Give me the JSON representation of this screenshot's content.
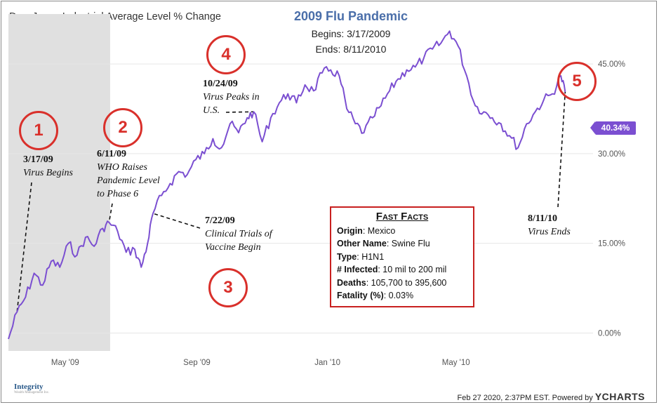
{
  "header": {
    "chart_title": "Dow Jones Industrial Average Level % Change",
    "event_title": "2009 Flu Pandemic",
    "begins": "Begins: 3/17/2009",
    "ends": "Ends: 8/11/2010"
  },
  "annotations": [
    {
      "num": "1",
      "date": "3/17/09",
      "desc_lines": [
        "Virus Begins"
      ]
    },
    {
      "num": "2",
      "date": "6/11/09",
      "desc_lines": [
        "WHO Raises",
        "Pandemic Level",
        "to Phase 6"
      ]
    },
    {
      "num": "3",
      "date": "7/22/09",
      "desc_lines": [
        "Clinical Trials of",
        "Vaccine Begin"
      ]
    },
    {
      "num": "4",
      "date": "10/24/09",
      "desc_lines": [
        "Virus Peaks in",
        "U.S."
      ]
    },
    {
      "num": "5",
      "date": "8/11/10",
      "desc_lines": [
        "Virus Ends"
      ]
    }
  ],
  "fast_facts": {
    "title": "Fast Facts",
    "rows": [
      {
        "label": "Origin",
        "value": ": Mexico"
      },
      {
        "label": "Other Name",
        "value": ": Swine Flu"
      },
      {
        "label": "Type",
        "value": ": H1N1"
      },
      {
        "label": "# Infected",
        "value": ": 10 mil to 200 mil"
      },
      {
        "label": "Deaths",
        "value": ": 105,700 to 395,600"
      },
      {
        "label": "Fatality (%)",
        "value": ": 0.03%"
      }
    ]
  },
  "value_tag": "40.34%",
  "footer": {
    "timestamp": "Feb 27 2020, 2:37PM EST. Powered by",
    "brand": "YCHARTS"
  },
  "logo": {
    "name": "Integrity",
    "tagline": "Wealth Management Inc."
  },
  "colors": {
    "line": "#7b4fd1",
    "marker": "#d9302b",
    "shade": "#e0e0e0",
    "title": "#4a6ea9"
  },
  "chart_data": {
    "type": "line",
    "title": "Dow Jones Industrial Average Level % Change",
    "x_tick_labels": [
      "May '09",
      "Sep '09",
      "Jan '10",
      "May '10"
    ],
    "y_tick_labels": [
      "0.00%",
      "15.00%",
      "30.00%",
      "45.00%"
    ],
    "ylim": [
      -3,
      51
    ],
    "xlim": [
      "2009-03-09",
      "2010-09-06"
    ],
    "grid": "horizontal",
    "shaded_range": [
      "2009-03-09",
      "2009-06-12"
    ],
    "series": [
      {
        "x": [
          "2009-03-09",
          "2009-03-17",
          "2009-03-25",
          "2009-04-02",
          "2009-04-10",
          "2009-04-18",
          "2009-04-26",
          "2009-05-04",
          "2009-05-12",
          "2009-05-20",
          "2009-05-28",
          "2009-06-05",
          "2009-06-11",
          "2009-06-19",
          "2009-06-27",
          "2009-07-05",
          "2009-07-11",
          "2009-07-17",
          "2009-07-22",
          "2009-07-30",
          "2009-08-07",
          "2009-08-15",
          "2009-08-23",
          "2009-08-31",
          "2009-09-08",
          "2009-09-16",
          "2009-09-24",
          "2009-10-02",
          "2009-10-10",
          "2009-10-18",
          "2009-10-24",
          "2009-11-01",
          "2009-11-09",
          "2009-11-17",
          "2009-11-25",
          "2009-12-03",
          "2009-12-11",
          "2009-12-19",
          "2009-12-27",
          "2010-01-04",
          "2010-01-12",
          "2010-01-19",
          "2010-01-27",
          "2010-02-04",
          "2010-02-12",
          "2010-02-20",
          "2010-02-28",
          "2010-03-08",
          "2010-03-16",
          "2010-03-24",
          "2010-04-01",
          "2010-04-09",
          "2010-04-17",
          "2010-04-25",
          "2010-05-03",
          "2010-05-11",
          "2010-05-19",
          "2010-05-27",
          "2010-06-04",
          "2010-06-12",
          "2010-06-20",
          "2010-06-28",
          "2010-07-06",
          "2010-07-14",
          "2010-07-22",
          "2010-07-30",
          "2010-08-07",
          "2010-08-11"
        ],
        "y": [
          -1,
          3.5,
          6,
          10,
          8,
          12,
          11,
          15,
          13,
          16,
          14.5,
          17.5,
          18.5,
          17,
          13.5,
          14,
          11,
          15,
          20,
          23,
          25,
          27,
          26.5,
          29,
          30,
          32.5,
          31,
          35,
          33.5,
          36,
          37,
          32,
          36,
          38.5,
          40,
          38.5,
          41.5,
          40.5,
          43.5,
          44,
          43,
          37.5,
          35,
          33.5,
          36,
          38,
          40.5,
          42.5,
          44,
          44.5,
          46,
          47.5,
          48.5,
          50.5,
          48,
          43,
          38,
          37,
          36,
          35,
          33,
          31,
          35,
          37,
          39,
          40,
          43,
          40.34
        ]
      }
    ]
  }
}
